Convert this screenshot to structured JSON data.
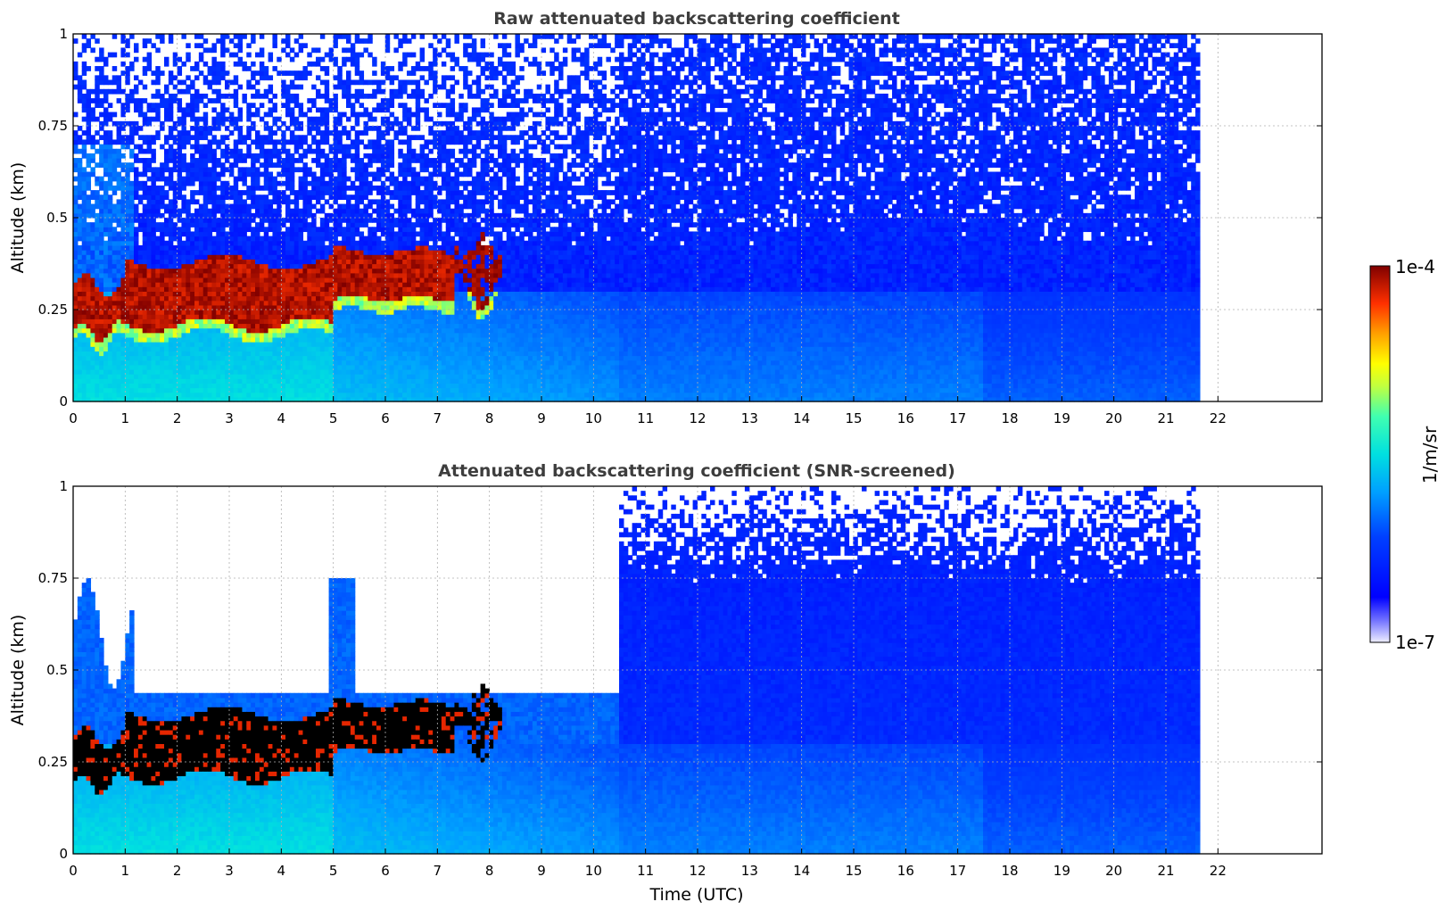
{
  "chart_data": [
    {
      "type": "heatmap",
      "title": "Raw attenuated backscattering coefficient",
      "xlabel": "",
      "ylabel": "Altitude (km)",
      "xlim": [
        0,
        24
      ],
      "ylim": [
        0,
        1
      ],
      "x_ticks": [
        "0",
        "1",
        "2",
        "3",
        "4",
        "5",
        "6",
        "7",
        "8",
        "9",
        "10",
        "11",
        "12",
        "13",
        "14",
        "15",
        "16",
        "17",
        "18",
        "19",
        "20",
        "21",
        "22"
      ],
      "y_ticks": [
        "0",
        "0.25",
        "0.5",
        "0.75",
        "1"
      ],
      "grid": true,
      "data_end_time": 21.65,
      "colormap": "jet",
      "color_scale": "log",
      "features": [
        {
          "region": "surface aerosol layer",
          "time": [
            0,
            21.65
          ],
          "altitude": [
            0,
            0.25
          ],
          "level": "moderate (1e-6 to 1e-5)"
        },
        {
          "region": "cloud layer",
          "time": [
            0,
            8.2
          ],
          "altitude": [
            0.2,
            0.42
          ],
          "level": "strong (~1e-4)"
        },
        {
          "region": "noisy upper region",
          "time": [
            0,
            21.65
          ],
          "altitude": [
            0.4,
            1.0
          ],
          "level": "low, noisy"
        }
      ]
    },
    {
      "type": "heatmap",
      "title": "Attenuated backscattering coefficient (SNR-screened)",
      "xlabel": "Time (UTC)",
      "ylabel": "Altitude (km)",
      "xlim": [
        0,
        24
      ],
      "ylim": [
        0,
        1
      ],
      "x_ticks": [
        "0",
        "1",
        "2",
        "3",
        "4",
        "5",
        "6",
        "7",
        "8",
        "9",
        "10",
        "11",
        "12",
        "13",
        "14",
        "15",
        "16",
        "17",
        "18",
        "19",
        "20",
        "21",
        "22"
      ],
      "y_ticks": [
        "0",
        "0.25",
        "0.5",
        "0.75",
        "1"
      ],
      "grid": true,
      "data_end_time": 21.65,
      "colormap": "jet",
      "color_scale": "log",
      "features": [
        {
          "region": "surface aerosol layer",
          "time": [
            0,
            21.65
          ],
          "altitude": [
            0,
            0.25
          ],
          "level": "moderate"
        },
        {
          "region": "cloud layer (saturated, shown black)",
          "time": [
            0,
            8.2
          ],
          "altitude": [
            0.2,
            0.38
          ],
          "level": "above range"
        },
        {
          "region": "screened-out upper region",
          "time": [
            0,
            10.5
          ],
          "altitude": [
            0.45,
            1.0
          ],
          "level": "missing"
        }
      ]
    }
  ],
  "colorbar": {
    "max_label": "1e-4",
    "min_label": "1e-7",
    "unit_label": "1/m/sr"
  },
  "colors": {
    "cloud_core": "#800000",
    "saturated": "#000000",
    "background": "#ffffff",
    "grid": "#b0b0b0"
  }
}
